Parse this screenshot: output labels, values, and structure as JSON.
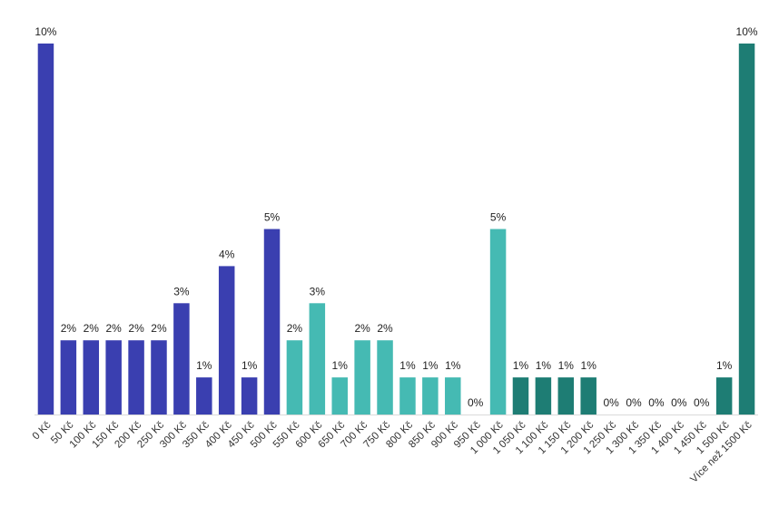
{
  "chart_data": {
    "type": "bar",
    "categories": [
      "0 Kč",
      "50 Kč",
      "100 Kč",
      "150 Kč",
      "200 Kč",
      "250 Kč",
      "300 Kč",
      "350 Kč",
      "400 Kč",
      "450 Kč",
      "500 Kč",
      "550 Kč",
      "600 Kč",
      "650 Kč",
      "700 Kč",
      "750 Kč",
      "800 Kč",
      "850 Kč",
      "900 Kč",
      "950 Kč",
      "1 000 Kč",
      "1 050 Kč",
      "1 100 Kč",
      "1 150 Kč",
      "1 200 Kč",
      "1 250 Kč",
      "1 300 Kč",
      "1 350 Kč",
      "1 400 Kč",
      "1 450 Kč",
      "1 500 Kč",
      "Více než 1500 Kč"
    ],
    "values": [
      10,
      2,
      2,
      2,
      2,
      2,
      3,
      1,
      4,
      1,
      5,
      2,
      3,
      1,
      2,
      2,
      1,
      1,
      1,
      0,
      5,
      1,
      1,
      1,
      1,
      0,
      0,
      0,
      0,
      0,
      1,
      10
    ],
    "value_labels": [
      "10%",
      "2%",
      "2%",
      "2%",
      "2%",
      "2%",
      "3%",
      "1%",
      "4%",
      "1%",
      "5%",
      "2%",
      "3%",
      "1%",
      "2%",
      "2%",
      "1%",
      "1%",
      "1%",
      "0%",
      "5%",
      "1%",
      "1%",
      "1%",
      "1%",
      "0%",
      "0%",
      "0%",
      "0%",
      "0%",
      "1%",
      "10%"
    ],
    "bar_colors": [
      "#3a3fb0",
      "#3a3fb0",
      "#3a3fb0",
      "#3a3fb0",
      "#3a3fb0",
      "#3a3fb0",
      "#3a3fb0",
      "#3a3fb0",
      "#3a3fb0",
      "#3a3fb0",
      "#3a3fb0",
      "#45bab3",
      "#45bab3",
      "#45bab3",
      "#45bab3",
      "#45bab3",
      "#45bab3",
      "#45bab3",
      "#45bab3",
      "#45bab3",
      "#45bab3",
      "#1e7d74",
      "#1e7d74",
      "#1e7d74",
      "#1e7d74",
      "#1e7d74",
      "#1e7d74",
      "#1e7d74",
      "#1e7d74",
      "#1e7d74",
      "#1e7d74",
      "#1e7d74"
    ],
    "title": "",
    "xlabel": "",
    "ylabel": "",
    "ylim": [
      0,
      10
    ],
    "grid": false,
    "legend": "none"
  }
}
